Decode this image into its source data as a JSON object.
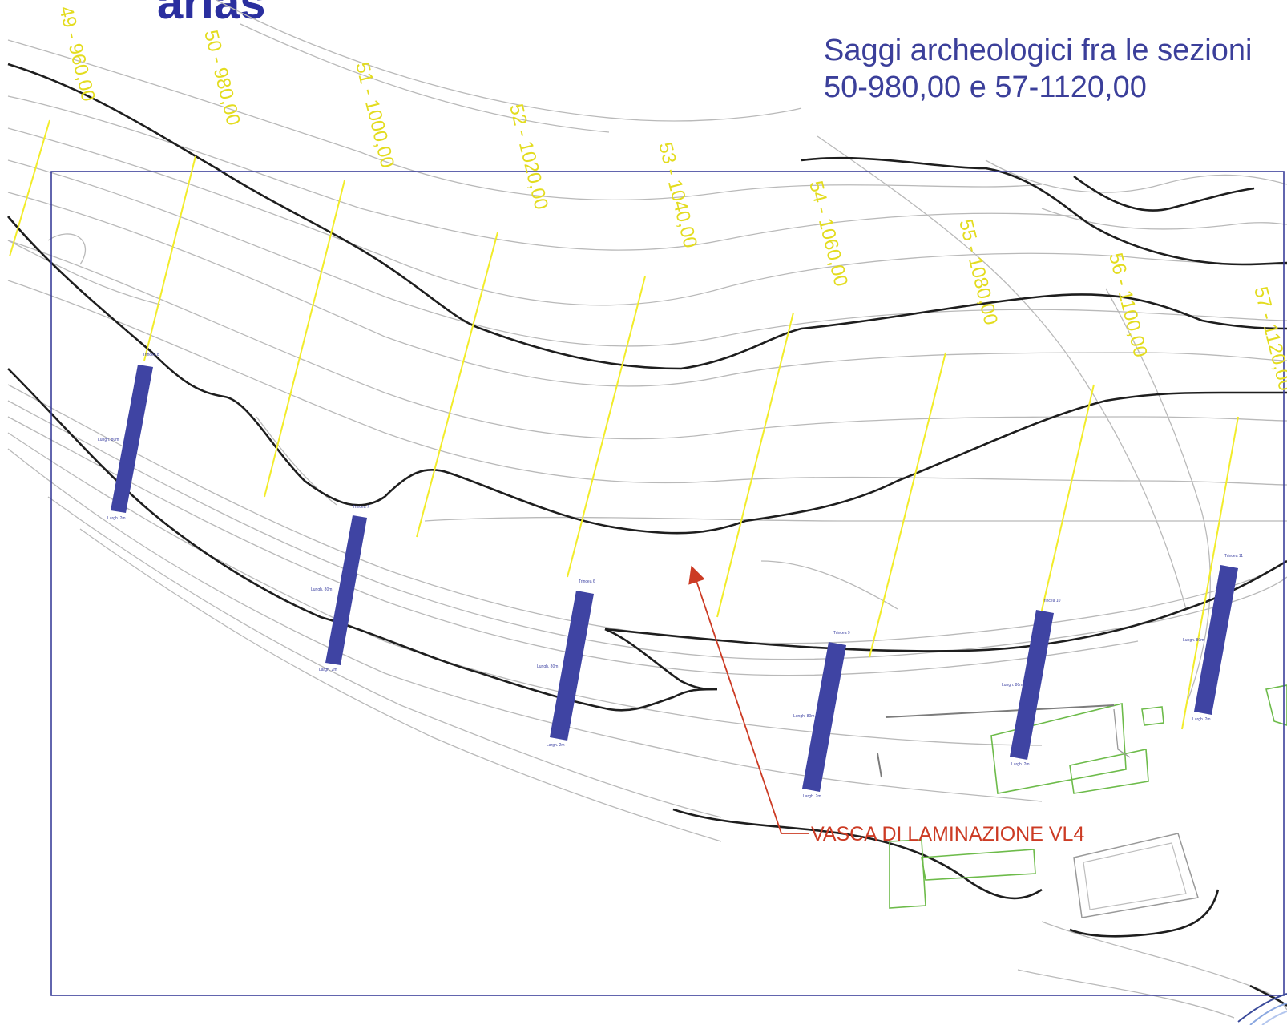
{
  "heading_fragment": "arias",
  "title": {
    "line1": "Saggi archeologici fra le sezioni",
    "line2": "50-980,00 e 57-1120,00"
  },
  "sections": [
    "49 - 960,00",
    "50 - 980,00",
    "51 - 1000,00",
    "52 - 1020,00",
    "53 - 1040,00",
    "54 - 1060,00",
    "55 - 1080,00",
    "56 - 1100,00",
    "57 - 1120,00"
  ],
  "trenches": [
    "Trincea 8",
    "Trincea 7",
    "Trincea 6",
    "Trincea 9",
    "Trincea 10",
    "Trincea 11"
  ],
  "trench_length_note": "Lungh. 80m",
  "trench_width_note": "Largh. 2m",
  "callout": "VASCA DI LAMINAZIONE VL4",
  "colors": {
    "frame": "#3b3f9a",
    "section_lines": "#f2ec2a",
    "trenches": "#3f44a3",
    "callout": "#cc3b24",
    "buildings": "#6dbb4a"
  }
}
